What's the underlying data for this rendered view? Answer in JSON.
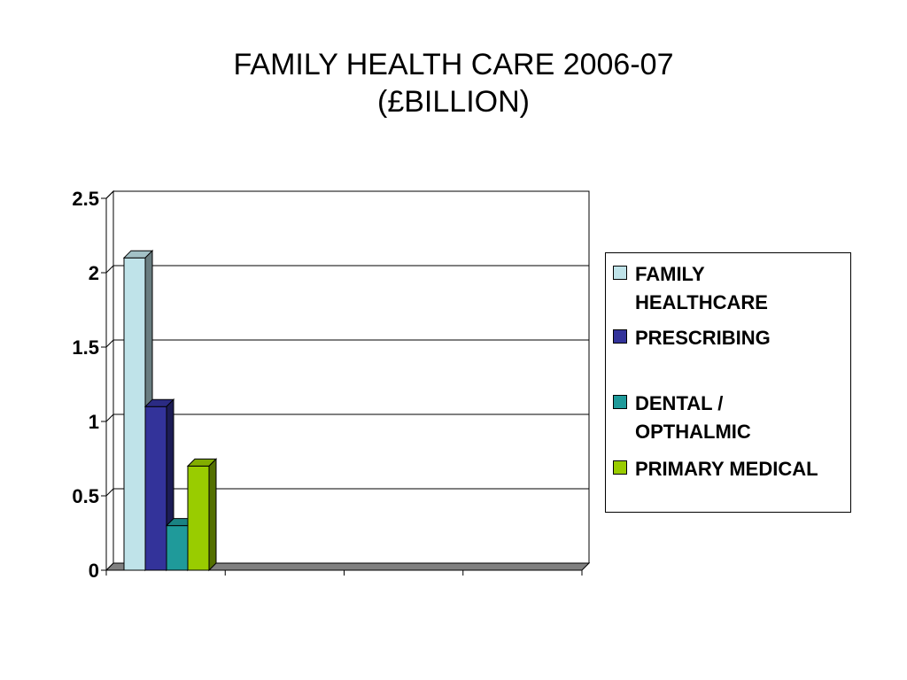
{
  "title_line1": "FAMILY HEALTH CARE 2006-07",
  "title_line2": "(£BILLION)",
  "chart_data": {
    "type": "bar",
    "categories": [
      ""
    ],
    "series": [
      {
        "name": "FAMILY HEALTHCARE",
        "values": [
          2.1
        ],
        "color": "#bfe3e9"
      },
      {
        "name": "PRESCRIBING",
        "values": [
          1.1
        ],
        "color": "#33339a"
      },
      {
        "name": "DENTAL / OPTHALMIC",
        "values": [
          0.3
        ],
        "color": "#1f9a9a"
      },
      {
        "name": "PRIMARY MEDICAL",
        "values": [
          0.7
        ],
        "color": "#99cc00"
      }
    ],
    "yticks": [
      "0",
      "0.5",
      "1",
      "1.5",
      "2",
      "2.5"
    ],
    "ylim": [
      0,
      2.5
    ],
    "grid": true,
    "legend": "right",
    "three_d": true
  },
  "legend": {
    "items": [
      {
        "label_line1": "FAMILY",
        "label_line2": "HEALTHCARE",
        "color": "#bfe3e9"
      },
      {
        "label_line1": "PRESCRIBING",
        "label_line2": "",
        "color": "#33339a"
      },
      {
        "label_line1": "DENTAL /",
        "label_line2": "OPTHALMIC",
        "color": "#1f9a9a"
      },
      {
        "label_line1": "PRIMARY MEDICAL",
        "label_line2": "",
        "color": "#99cc00"
      }
    ]
  }
}
